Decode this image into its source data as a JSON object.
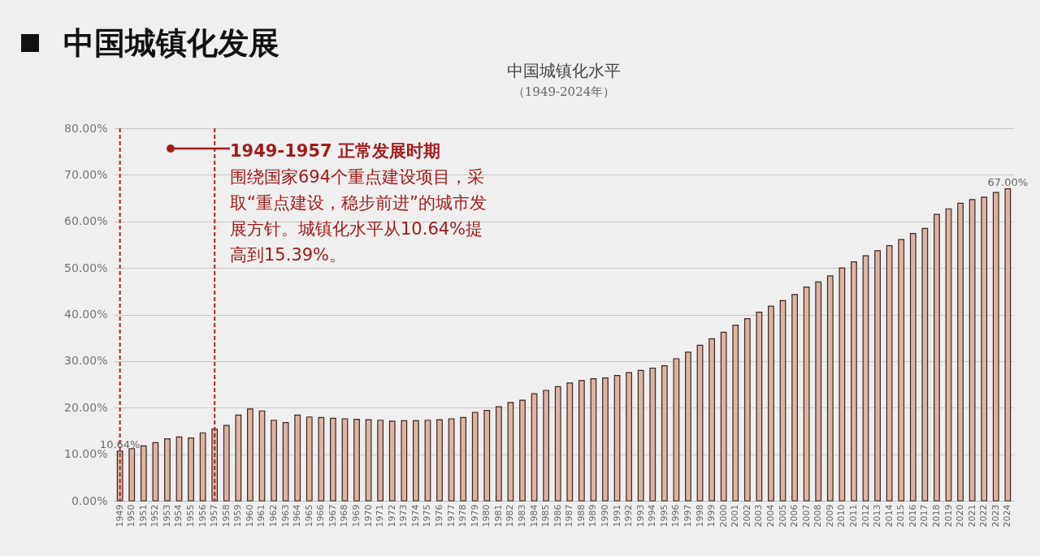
{
  "chart_data": {
    "type": "bar",
    "title": "中国城镇化水平",
    "subtitle": "（1949-2024年）",
    "annotations": [
      "中国城镇化发展",
      "1949-1957 正常发展时期",
      "围绕国家694个重点建设项目，采取“重点建设，稳步前进”的城市发展方针。城镇化水平从10.64%提高到15.39%。"
    ],
    "categories": [
      "1949",
      "1950",
      "1951",
      "1952",
      "1953",
      "1954",
      "1955",
      "1956",
      "1957",
      "1958",
      "1959",
      "1960",
      "1961",
      "1962",
      "1963",
      "1964",
      "1965",
      "1966",
      "1967",
      "1968",
      "1969",
      "1970",
      "1971",
      "1972",
      "1973",
      "1974",
      "1975",
      "1976",
      "1977",
      "1978",
      "1979",
      "1980",
      "1981",
      "1982",
      "1983",
      "1984",
      "1985",
      "1986",
      "1987",
      "1988",
      "1989",
      "1990",
      "1991",
      "1992",
      "1993",
      "1994",
      "1995",
      "1996",
      "1997",
      "1998",
      "1999",
      "2000",
      "2001",
      "2002",
      "2003",
      "2004",
      "2005",
      "2006",
      "2007",
      "2008",
      "2009",
      "2010",
      "2011",
      "2012",
      "2013",
      "2014",
      "2015",
      "2016",
      "2017",
      "2018",
      "2019",
      "2020",
      "2021",
      "2022",
      "2023",
      "2024"
    ],
    "values": [
      10.64,
      11.2,
      11.8,
      12.5,
      13.3,
      13.7,
      13.5,
      14.6,
      15.4,
      16.2,
      18.4,
      19.7,
      19.3,
      17.3,
      16.8,
      18.4,
      18.0,
      17.9,
      17.7,
      17.6,
      17.5,
      17.4,
      17.3,
      17.1,
      17.2,
      17.2,
      17.3,
      17.4,
      17.6,
      17.9,
      19.0,
      19.4,
      20.2,
      21.1,
      21.6,
      23.0,
      23.7,
      24.5,
      25.3,
      25.8,
      26.2,
      26.4,
      26.9,
      27.5,
      28.0,
      28.5,
      29.0,
      30.5,
      31.9,
      33.4,
      34.8,
      36.2,
      37.7,
      39.1,
      40.5,
      41.8,
      43.0,
      44.3,
      45.9,
      47.0,
      48.3,
      50.0,
      51.3,
      52.6,
      53.7,
      54.8,
      56.1,
      57.4,
      58.5,
      61.5,
      62.7,
      63.9,
      64.7,
      65.2,
      66.2,
      67.0
    ],
    "value_labels": [
      "10.64%",
      null,
      null,
      null,
      null,
      null,
      null,
      null,
      null,
      null,
      null,
      null,
      null,
      null,
      null,
      null,
      null,
      null,
      null,
      null,
      null,
      null,
      null,
      null,
      null,
      null,
      null,
      null,
      null,
      null,
      null,
      null,
      null,
      null,
      null,
      null,
      null,
      null,
      null,
      null,
      null,
      null,
      null,
      null,
      null,
      null,
      null,
      null,
      null,
      null,
      null,
      null,
      null,
      null,
      null,
      null,
      null,
      null,
      null,
      null,
      null,
      null,
      null,
      null,
      null,
      null,
      null,
      null,
      null,
      null,
      null,
      null,
      null,
      null,
      null,
      "67.00%"
    ],
    "color": "#dcb4a4",
    "ylim": [
      0,
      80
    ],
    "yticks": [
      {
        "value": 0,
        "label": "0.00%"
      },
      {
        "value": 10,
        "label": "10.00%"
      },
      {
        "value": 20,
        "label": "20.00%"
      },
      {
        "value": 30,
        "label": "30.00%"
      },
      {
        "value": 40,
        "label": "40.00%"
      },
      {
        "value": 50,
        "label": "50.00%"
      },
      {
        "value": 60,
        "label": "60.00%"
      },
      {
        "value": 70,
        "label": "70.00%"
      },
      {
        "value": 80,
        "label": "80.00%"
      }
    ],
    "grid": "y",
    "ref_lines": [
      {
        "axis": "x",
        "value": "1949",
        "color": "#a52a2a",
        "line_style": "dashed"
      },
      {
        "axis": "x",
        "value": "1957",
        "color": "#a52a2a",
        "line_style": "dashed"
      }
    ]
  }
}
